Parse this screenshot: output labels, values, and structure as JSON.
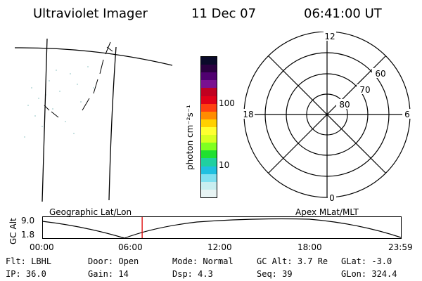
{
  "header": {
    "instrument": "Ultraviolet Imager",
    "date": "11 Dec 07",
    "time": "06:41:00 UT"
  },
  "colorbar": {
    "label": "photon cm⁻²s⁻¹",
    "ticks": [
      "100",
      "10"
    ],
    "colors": [
      "#0a0a2a",
      "#2a0040",
      "#500070",
      "#7a1090",
      "#c00020",
      "#e00018",
      "#ff4010",
      "#ff8c00",
      "#ffd000",
      "#ffff30",
      "#d8ff20",
      "#80ff20",
      "#20e030",
      "#20d0a0",
      "#20c0e0",
      "#80e0f0",
      "#c8eef0",
      "#e8f4f4"
    ]
  },
  "polar": {
    "mlt_labels": {
      "top": "12",
      "left": "18",
      "right": "6",
      "bottom": "0"
    },
    "lat_labels": [
      "60",
      "70",
      "80"
    ]
  },
  "orbit": {
    "left_label": "Geographic Lat/Lon",
    "right_label": "Apex MLat/MLT",
    "axis_label": "GC Alt",
    "y_ticks": [
      "9.0",
      "1.8"
    ],
    "x_ticks": [
      "00:00",
      "06:00",
      "12:00",
      "18:00",
      "23:59"
    ],
    "marker_time_hours": 6.683
  },
  "footer": {
    "row1": [
      {
        "label": "Flt:",
        "value": "LBHL"
      },
      {
        "label": "Door:",
        "value": "Open"
      },
      {
        "label": "Mode:",
        "value": "Normal"
      },
      {
        "label": "GC Alt:",
        "value": "3.7 Re"
      },
      {
        "label": "GLat:",
        "value": "-3.0"
      }
    ],
    "row2": [
      {
        "label": "IP:",
        "value": "36.0"
      },
      {
        "label": "Gain:",
        "value": "14"
      },
      {
        "label": "Dsp:",
        "value": "4.3"
      },
      {
        "label": "Seq:",
        "value": "39"
      },
      {
        "label": "GLon:",
        "value": "324.4"
      }
    ]
  }
}
